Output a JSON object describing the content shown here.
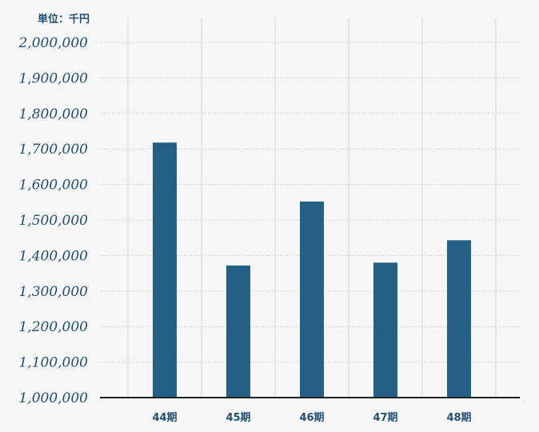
{
  "chart_data": {
    "type": "bar",
    "unit_label": "単位：千円",
    "categories": [
      "44期",
      "45期",
      "46期",
      "47期",
      "48期"
    ],
    "values": [
      1718000,
      1372000,
      1552000,
      1380000,
      1443000
    ],
    "ylim": [
      1000000,
      2000000
    ],
    "yticks": [
      1000000,
      1100000,
      1200000,
      1300000,
      1400000,
      1500000,
      1600000,
      1700000,
      1800000,
      1900000,
      2000000
    ],
    "ytick_labels": [
      "1,000,000",
      "1,100,000",
      "1,200,000",
      "1,300,000",
      "1,400,000",
      "1,500,000",
      "1,600,000",
      "1,700,000",
      "1,800,000",
      "1,900,000",
      "2,000,000"
    ],
    "grid": true,
    "bar_color": "#245f85",
    "axis_color": "#1f4f73"
  }
}
